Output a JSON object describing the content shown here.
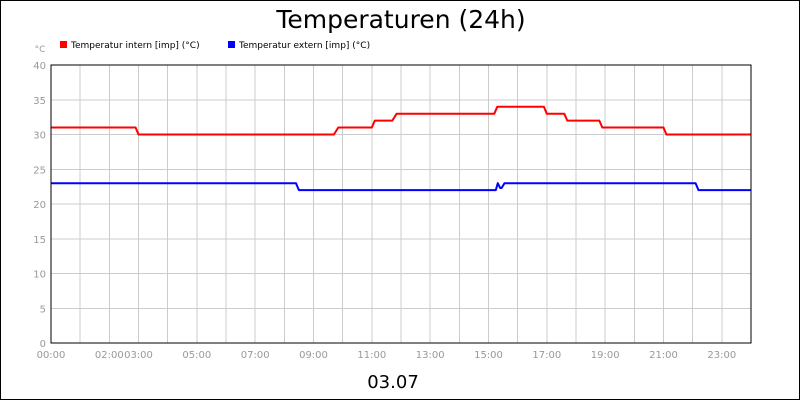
{
  "chart_data": {
    "type": "line",
    "title": "Temperaturen (24h)",
    "xlabel": "03.07",
    "ylabel": "°C",
    "ylim": [
      0,
      40
    ],
    "xlim": [
      0,
      24
    ],
    "y_ticks": [
      0,
      5,
      10,
      15,
      20,
      25,
      30,
      35,
      40
    ],
    "x_ticks": [
      {
        "label": "00:00",
        "value": 0
      },
      {
        "label": "02:00",
        "value": 2
      },
      {
        "label": "03:00",
        "value": 3
      },
      {
        "label": "05:00",
        "value": 5
      },
      {
        "label": "07:00",
        "value": 7
      },
      {
        "label": "09:00",
        "value": 9
      },
      {
        "label": "11:00",
        "value": 11
      },
      {
        "label": "13:00",
        "value": 13
      },
      {
        "label": "15:00",
        "value": 15
      },
      {
        "label": "17:00",
        "value": 17
      },
      {
        "label": "19:00",
        "value": 19
      },
      {
        "label": "21:00",
        "value": 21
      },
      {
        "label": "23:00",
        "value": 23
      }
    ],
    "grid": true,
    "legend_position": "top-left",
    "series": [
      {
        "name": "Temperatur intern [imp] (°C)",
        "color": "#ff0000",
        "x": [
          0,
          2.9,
          3.0,
          9.7,
          9.85,
          11.0,
          11.1,
          11.7,
          11.85,
          15.2,
          15.3,
          16.9,
          17.0,
          17.6,
          17.7,
          18.8,
          18.9,
          21.0,
          21.1,
          24.0
        ],
        "y": [
          31,
          31,
          30,
          30,
          31,
          31,
          32,
          32,
          33,
          33,
          34,
          34,
          33,
          33,
          32,
          32,
          31,
          31,
          30,
          30
        ]
      },
      {
        "name": "Temperatur extern [imp] (°C)",
        "color": "#0000ff",
        "x": [
          0,
          8.4,
          8.5,
          15.25,
          15.32,
          15.4,
          15.45,
          15.55,
          15.6,
          22.1,
          22.2,
          24.0
        ],
        "y": [
          23,
          23,
          22,
          22,
          23,
          22.3,
          22.3,
          23,
          23,
          23,
          22,
          22
        ]
      }
    ]
  }
}
